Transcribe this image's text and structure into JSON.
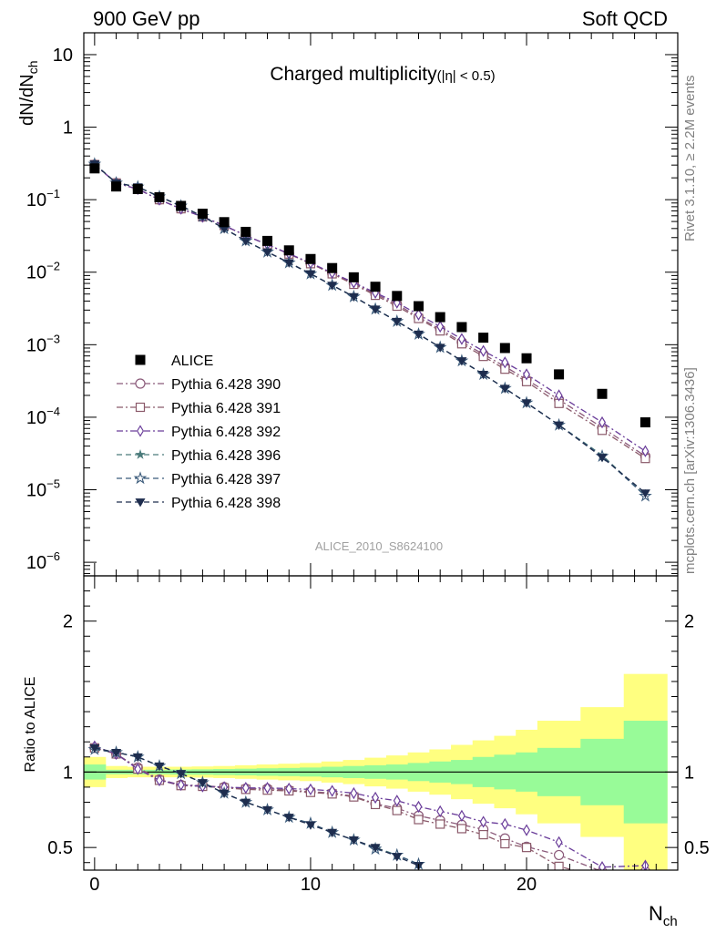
{
  "header": {
    "left": "900 GeV pp",
    "right": "Soft QCD"
  },
  "side": {
    "rivet": "Rivet 3.1.10, ≥ 2.2M events",
    "mcplots": "mcplots.cern.ch [arXiv:1306.3436]"
  },
  "chart_data": [
    {
      "type": "scatter",
      "panel": "main",
      "title": "Charged multiplicity",
      "title_suffix": "(|η| < 0.5)",
      "analysis_id": "ALICE_2010_S8624100",
      "xlabel_base": "N",
      "xlabel_sub": "ch",
      "ylabel_base": "dN/dN",
      "ylabel_sub": "ch",
      "yscale": "log",
      "ylim": [
        6.5e-07,
        20
      ],
      "xlim": [
        -0.5,
        27
      ],
      "y_ticks": [
        {
          "v": 10,
          "b": "10",
          "e": ""
        },
        {
          "v": 1,
          "b": "1",
          "e": ""
        },
        {
          "v": 0.1,
          "b": "10",
          "e": "−1"
        },
        {
          "v": 0.01,
          "b": "10",
          "e": "−2"
        },
        {
          "v": 0.001,
          "b": "10",
          "e": "−3"
        },
        {
          "v": 0.0001,
          "b": "10",
          "e": "−4"
        },
        {
          "v": 1e-05,
          "b": "10",
          "e": "−5"
        },
        {
          "v": 1e-06,
          "b": "10",
          "e": "−6"
        }
      ],
      "x_ticks": [
        0,
        10,
        20
      ],
      "legend_position": "lower-left",
      "series": [
        {
          "name": "ALICE",
          "marker": "square-filled",
          "color": "#000000",
          "line": "none",
          "x": [
            0,
            1,
            2,
            3,
            4,
            5,
            6,
            7,
            8,
            9,
            10,
            11,
            12,
            13,
            14,
            15,
            16,
            17,
            18,
            19,
            20,
            21.5,
            23.5,
            25.5
          ],
          "y": [
            0.27,
            0.152,
            0.14,
            0.108,
            0.082,
            0.064,
            0.049,
            0.036,
            0.027,
            0.02,
            0.0152,
            0.0114,
            0.0085,
            0.0063,
            0.0047,
            0.0034,
            0.0024,
            0.00175,
            0.00125,
            0.0009,
            0.00065,
            0.00039,
            0.00021,
            8.5e-05
          ]
        },
        {
          "name": "Pythia 6.428 390",
          "marker": "circle-open",
          "color": "#8b5a7a",
          "line": "dashdot",
          "x": [
            0,
            1,
            2,
            3,
            4,
            5,
            6,
            7,
            8,
            9,
            10,
            11,
            12,
            13,
            14,
            15,
            16,
            17,
            18,
            19,
            20,
            21.5,
            23.5,
            25.5
          ],
          "y": [
            0.305,
            0.17,
            0.14,
            0.1,
            0.075,
            0.058,
            0.044,
            0.032,
            0.024,
            0.018,
            0.0132,
            0.0096,
            0.007,
            0.005,
            0.0036,
            0.0024,
            0.00163,
            0.00109,
            0.00074,
            0.0005,
            0.00033,
            0.000175,
            7.2e-05,
            2.9e-05
          ]
        },
        {
          "name": "Pythia 6.428 391",
          "marker": "square-open",
          "color": "#8b5a6a",
          "line": "dashdot",
          "x": [
            0,
            1,
            2,
            3,
            4,
            5,
            6,
            7,
            8,
            9,
            10,
            11,
            12,
            13,
            14,
            15,
            16,
            17,
            18,
            19,
            20,
            21.5,
            23.5,
            25.5
          ],
          "y": [
            0.305,
            0.17,
            0.14,
            0.1,
            0.075,
            0.058,
            0.044,
            0.032,
            0.024,
            0.0178,
            0.0131,
            0.0095,
            0.0068,
            0.0048,
            0.0034,
            0.0023,
            0.00155,
            0.00103,
            0.00069,
            0.00046,
            0.00031,
            0.000155,
            6.6e-05,
            2.7e-05
          ]
        },
        {
          "name": "Pythia 6.428 392",
          "marker": "diamond-open",
          "color": "#6a3d9a",
          "line": "dashdot",
          "x": [
            0,
            1,
            2,
            3,
            4,
            5,
            6,
            7,
            8,
            9,
            10,
            11,
            12,
            13,
            14,
            15,
            16,
            17,
            18,
            19,
            20,
            21.5,
            23.5,
            25.5
          ],
          "y": [
            0.305,
            0.17,
            0.14,
            0.1,
            0.075,
            0.058,
            0.044,
            0.032,
            0.024,
            0.018,
            0.0134,
            0.0098,
            0.0072,
            0.0052,
            0.0038,
            0.0026,
            0.00178,
            0.0012,
            0.00082,
            0.00057,
            0.00039,
            0.0002,
            8.5e-05,
            3.4e-05
          ]
        },
        {
          "name": "Pythia 6.428 396",
          "marker": "star-filled",
          "color": "#4a7a7a",
          "line": "dashed",
          "x": [
            0,
            1,
            2,
            3,
            4,
            5,
            6,
            7,
            8,
            9,
            10,
            11,
            12,
            13,
            14,
            15,
            16,
            17,
            18,
            19,
            20,
            21.5,
            23.5,
            25.5
          ],
          "y": [
            0.31,
            0.17,
            0.15,
            0.11,
            0.082,
            0.059,
            0.04,
            0.027,
            0.019,
            0.0135,
            0.0095,
            0.0066,
            0.0046,
            0.0031,
            0.0021,
            0.0014,
            0.00092,
            0.0006,
            0.00039,
            0.00025,
            0.000158,
            7.8e-05,
            3e-05,
            8.3e-06
          ]
        },
        {
          "name": "Pythia 6.428 397",
          "marker": "star-open",
          "color": "#3a5a7a",
          "line": "dashed",
          "x": [
            0,
            1,
            2,
            3,
            4,
            5,
            6,
            7,
            8,
            9,
            10,
            11,
            12,
            13,
            14,
            15,
            16,
            17,
            18,
            19,
            20,
            21.5,
            23.5,
            25.5
          ],
          "y": [
            0.31,
            0.17,
            0.15,
            0.11,
            0.082,
            0.059,
            0.04,
            0.027,
            0.019,
            0.0135,
            0.0095,
            0.0066,
            0.0046,
            0.0031,
            0.0021,
            0.0014,
            0.00092,
            0.0006,
            0.00039,
            0.00025,
            0.000158,
            7.8e-05,
            2.9e-05,
            8.2e-06
          ]
        },
        {
          "name": "Pythia 6.428 398",
          "marker": "triangle-down-filled",
          "color": "#1e2d4e",
          "line": "dashed",
          "x": [
            0,
            1,
            2,
            3,
            4,
            5,
            6,
            7,
            8,
            9,
            10,
            11,
            12,
            13,
            14,
            15,
            16,
            17,
            18,
            19,
            20,
            21.5,
            23.5,
            25.5
          ],
          "y": [
            0.31,
            0.17,
            0.15,
            0.11,
            0.082,
            0.059,
            0.04,
            0.027,
            0.019,
            0.0135,
            0.0095,
            0.0066,
            0.0046,
            0.0031,
            0.0021,
            0.0014,
            0.00092,
            0.0006,
            0.00039,
            0.00025,
            0.000158,
            7.8e-05,
            2.8e-05,
            9e-06
          ]
        }
      ]
    },
    {
      "type": "line",
      "panel": "ratio",
      "ylabel": "Ratio to ALICE",
      "ylim": [
        0.35,
        2.3
      ],
      "xlim": [
        -0.5,
        27
      ],
      "y_ticks": [
        0.5,
        1,
        2
      ],
      "x_ticks": [
        0,
        10,
        20
      ],
      "reference_line": 1,
      "band_edges": [
        -0.5,
        0.5,
        1.5,
        2.5,
        3.5,
        4.5,
        5.5,
        6.5,
        7.5,
        8.5,
        9.5,
        10.5,
        11.5,
        12.5,
        13.5,
        14.5,
        15.5,
        16.5,
        17.5,
        18.5,
        19.5,
        20.5,
        22.5,
        24.5,
        26.5
      ],
      "band_stat_low": [
        0.95,
        0.985,
        0.985,
        0.985,
        0.983,
        0.982,
        0.98,
        0.978,
        0.975,
        0.973,
        0.97,
        0.965,
        0.96,
        0.955,
        0.95,
        0.94,
        0.93,
        0.92,
        0.9,
        0.885,
        0.87,
        0.84,
        0.78,
        0.66
      ],
      "band_stat_high": [
        1.05,
        1.015,
        1.015,
        1.015,
        1.017,
        1.018,
        1.02,
        1.022,
        1.025,
        1.027,
        1.03,
        1.035,
        1.04,
        1.045,
        1.05,
        1.06,
        1.07,
        1.08,
        1.1,
        1.115,
        1.13,
        1.16,
        1.22,
        1.34
      ],
      "band_total_low": [
        0.9,
        0.96,
        0.965,
        0.965,
        0.965,
        0.963,
        0.96,
        0.955,
        0.95,
        0.945,
        0.94,
        0.93,
        0.92,
        0.905,
        0.89,
        0.87,
        0.85,
        0.82,
        0.79,
        0.76,
        0.72,
        0.66,
        0.57,
        0.35
      ],
      "band_total_high": [
        1.1,
        1.04,
        1.035,
        1.035,
        1.035,
        1.037,
        1.04,
        1.045,
        1.05,
        1.055,
        1.06,
        1.07,
        1.08,
        1.095,
        1.11,
        1.13,
        1.15,
        1.18,
        1.21,
        1.24,
        1.28,
        1.34,
        1.43,
        1.65
      ],
      "series": [
        {
          "name": "Pythia 6.428 390",
          "marker": "circle-open",
          "color": "#8b5a7a",
          "line": "dashdot",
          "x": [
            0,
            1,
            2,
            3,
            4,
            5,
            6,
            7,
            8,
            9,
            10,
            11,
            12,
            13,
            14,
            15,
            16,
            17,
            18,
            19,
            20,
            21.5,
            23.5,
            25.5
          ],
          "y": [
            1.16,
            1.12,
            1.03,
            0.95,
            0.915,
            0.91,
            0.9,
            0.89,
            0.89,
            0.88,
            0.87,
            0.86,
            0.84,
            0.79,
            0.76,
            0.71,
            0.68,
            0.65,
            0.62,
            0.56,
            0.505,
            0.45,
            0.34,
            0.34
          ]
        },
        {
          "name": "Pythia 6.428 391",
          "marker": "square-open",
          "color": "#8b5a6a",
          "line": "dashdot",
          "x": [
            0,
            1,
            2,
            3,
            4,
            5,
            6,
            7,
            8,
            9,
            10,
            11,
            12,
            13,
            14,
            15,
            16,
            17,
            18,
            19,
            20,
            21.5,
            23.5,
            25.5
          ],
          "y": [
            1.16,
            1.12,
            1.02,
            0.945,
            0.91,
            0.905,
            0.895,
            0.885,
            0.88,
            0.875,
            0.865,
            0.855,
            0.835,
            0.785,
            0.745,
            0.685,
            0.655,
            0.625,
            0.585,
            0.525,
            0.5,
            0.375,
            0.3,
            0.3
          ]
        },
        {
          "name": "Pythia 6.428 392",
          "marker": "diamond-open",
          "color": "#6a3d9a",
          "line": "dashdot",
          "x": [
            0,
            1,
            2,
            3,
            4,
            5,
            6,
            7,
            8,
            9,
            10,
            11,
            12,
            13,
            14,
            15,
            16,
            17,
            18,
            19,
            20,
            21.5,
            23.5,
            25.5
          ],
          "y": [
            1.17,
            1.12,
            1.02,
            0.945,
            0.915,
            0.905,
            0.9,
            0.895,
            0.895,
            0.89,
            0.885,
            0.875,
            0.86,
            0.83,
            0.81,
            0.77,
            0.74,
            0.71,
            0.67,
            0.655,
            0.615,
            0.535,
            0.37,
            0.38
          ]
        },
        {
          "name": "Pythia 6.428 396",
          "marker": "star-filled",
          "color": "#4a7a7a",
          "line": "dashed",
          "x": [
            0,
            1,
            2,
            3,
            4,
            5,
            6,
            7,
            8,
            9,
            10,
            11,
            12,
            13,
            14,
            15
          ],
          "y": [
            1.15,
            1.13,
            1.1,
            1.04,
            0.99,
            0.93,
            0.86,
            0.8,
            0.75,
            0.7,
            0.66,
            0.6,
            0.55,
            0.5,
            0.45,
            0.39
          ]
        },
        {
          "name": "Pythia 6.428 397",
          "marker": "star-open",
          "color": "#3a5a7a",
          "line": "dashed",
          "x": [
            0,
            1,
            2,
            3,
            4,
            5,
            6,
            7,
            8,
            9,
            10,
            11,
            12,
            13,
            14,
            15
          ],
          "y": [
            1.15,
            1.13,
            1.1,
            1.04,
            0.99,
            0.93,
            0.86,
            0.8,
            0.75,
            0.7,
            0.66,
            0.6,
            0.55,
            0.49,
            0.45,
            0.39
          ]
        },
        {
          "name": "Pythia 6.428 398",
          "marker": "triangle-down-filled",
          "color": "#1e2d4e",
          "line": "dashed",
          "x": [
            0,
            1,
            2,
            3,
            4,
            5,
            6,
            7,
            8,
            9,
            10,
            11,
            12,
            13,
            14,
            15
          ],
          "y": [
            1.16,
            1.13,
            1.1,
            1.04,
            0.99,
            0.93,
            0.86,
            0.8,
            0.75,
            0.7,
            0.65,
            0.6,
            0.55,
            0.5,
            0.44,
            0.38
          ]
        }
      ]
    }
  ]
}
